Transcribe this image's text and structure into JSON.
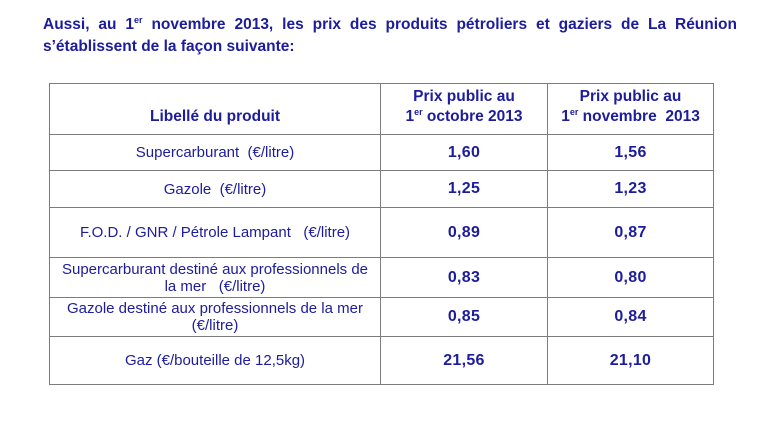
{
  "intro": {
    "line1_pre": "Aussi, au 1",
    "sup": "er",
    "line1_post": " novembre 2013, les prix des produits pétroliers et gaziers de La Réunion",
    "line2": "s’établissent de la façon suivante:"
  },
  "table": {
    "col_product": "Libellé du produit",
    "col_oct": {
      "line1": "Prix public au",
      "num": "1",
      "sup": "er",
      "rest": " octobre 2013"
    },
    "col_nov": {
      "line1": "Prix public au",
      "num": "1",
      "sup": "er",
      "rest": " novembre  2013"
    },
    "rows": [
      {
        "label": "Supercarburant  (€/litre)",
        "oct": "1,60",
        "nov": "1,56"
      },
      {
        "label": "Gazole  (€/litre)",
        "oct": "1,25",
        "nov": "1,23"
      },
      {
        "label": "F.O.D. / GNR / Pétrole Lampant   (€/litre)",
        "oct": "0,89",
        "nov": "0,87"
      },
      {
        "label": "Supercarburant destiné aux professionnels de la mer   (€/litre)",
        "oct": "0,83",
        "nov": "0,80"
      },
      {
        "label": "Gazole destiné aux professionnels de la mer   (€/litre)",
        "oct": "0,85",
        "nov": "0,84"
      },
      {
        "label": "Gaz (€/bouteille de 12,5kg)",
        "oct": "21,56",
        "nov": "21,10"
      }
    ]
  },
  "colors": {
    "text_navy": "#1c1c9c",
    "border_gray": "#7c7c7c",
    "background": "#ffffff"
  }
}
